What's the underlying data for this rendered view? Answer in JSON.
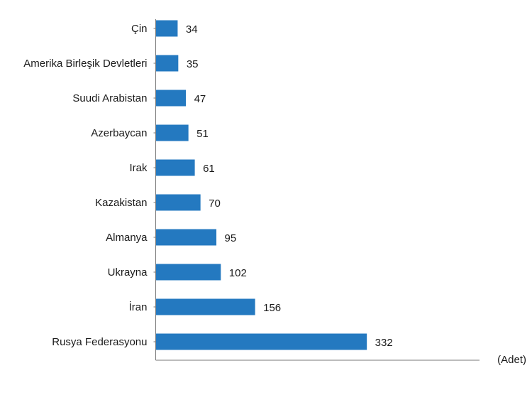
{
  "chart_data": {
    "type": "bar",
    "orientation": "horizontal",
    "categories": [
      "Çin",
      "Amerika Birleşik Devletleri",
      "Suudi Arabistan",
      "Azerbaycan",
      "Irak",
      "Kazakistan",
      "Almanya",
      "Ukrayna",
      "İran",
      "Rusya Federasyonu"
    ],
    "values": [
      34,
      35,
      47,
      51,
      61,
      70,
      95,
      102,
      156,
      332
    ],
    "unit_label": "(Adet)",
    "title": "",
    "xlabel": "",
    "ylabel": "",
    "xlim": [
      0,
      510
    ],
    "grid": false,
    "legend": "none",
    "data_labels": true,
    "bar_color": "#2479c0",
    "label_color": "#1a1a1a",
    "axis_color": "#7a7a7a"
  }
}
